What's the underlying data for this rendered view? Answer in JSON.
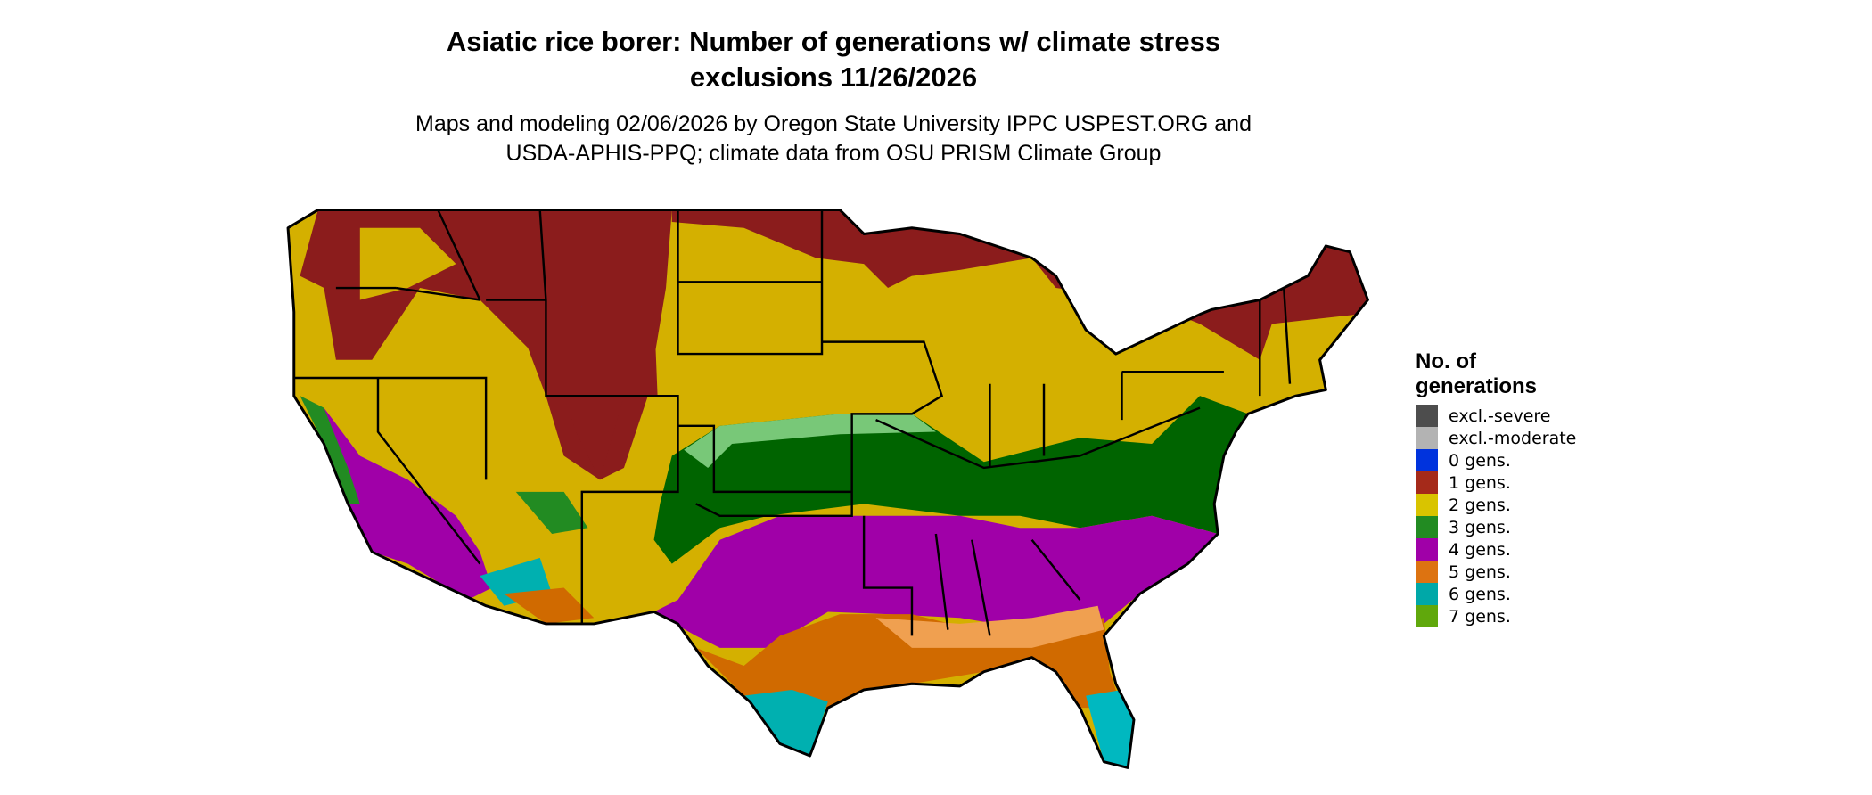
{
  "title_line1": "Asiatic rice borer: Number of generations w/ climate stress",
  "title_line2": "exclusions 11/26/2026",
  "subtitle_line1": "Maps and modeling 02/06/2026 by Oregon State University IPPC USPEST.ORG and",
  "subtitle_line2": "USDA-APHIS-PPQ; climate data from OSU PRISM Climate Group",
  "legend": {
    "title_line1": "No. of",
    "title_line2": "generations",
    "items": [
      {
        "label": "excl.-severe",
        "color": "#4d4d4d"
      },
      {
        "label": "excl.-moderate",
        "color": "#b3b3b3"
      },
      {
        "label": "0 gens.",
        "color": "#0033dd"
      },
      {
        "label": "1 gens.",
        "color": "#a52a1a"
      },
      {
        "label": "2 gens.",
        "color": "#d9c400"
      },
      {
        "label": "3 gens.",
        "color": "#228b22"
      },
      {
        "label": "4 gens.",
        "color": "#a000a8"
      },
      {
        "label": "5 gens.",
        "color": "#dd7311"
      },
      {
        "label": "6 gens.",
        "color": "#00a8a8"
      },
      {
        "label": "7 gens.",
        "color": "#60a80c"
      }
    ]
  }
}
